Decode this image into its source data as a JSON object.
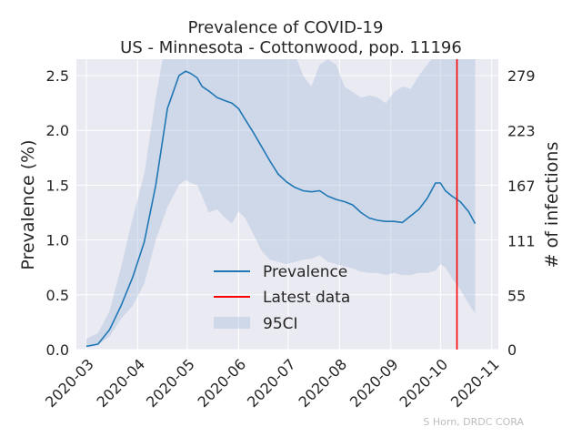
{
  "chart_data": {
    "type": "line",
    "title": "Prevalence of COVID-19",
    "subtitle": "US - Minnesota - Cottonwood, pop. 11196",
    "ylabel": "Prevalence (%)",
    "ylabel_right": "# of infections",
    "ylim": [
      0,
      2.65
    ],
    "y_ticks": [
      0.0,
      0.5,
      1.0,
      1.5,
      2.0,
      2.5
    ],
    "y_tick_labels": [
      "0.0",
      "0.5",
      "1.0",
      "1.5",
      "2.0",
      "2.5"
    ],
    "y2_ticks": [
      0,
      55,
      111,
      167,
      223,
      279
    ],
    "y2_tick_labels": [
      "0",
      "55",
      "111",
      "167",
      "223",
      "279"
    ],
    "x_ticks": [
      "2020-03-01",
      "2020-04-01",
      "2020-05-01",
      "2020-06-01",
      "2020-07-01",
      "2020-08-01",
      "2020-09-01",
      "2020-10-01",
      "2020-11-01"
    ],
    "x_tick_labels": [
      "2020-03",
      "2020-04",
      "2020-05",
      "2020-06",
      "2020-07",
      "2020-08",
      "2020-09",
      "2020-10",
      "2020-11"
    ],
    "xlim": [
      "2020-02-24",
      "2020-11-05"
    ],
    "grid": true,
    "legend_position": "lower-center",
    "colors": {
      "prevalence": "#1f77b4",
      "latest": "#ff0000",
      "ci": "#b0c4de",
      "background": "#eaeaf2"
    },
    "series": [
      {
        "name": "Prevalence",
        "x": [
          "2020-03-01",
          "2020-03-08",
          "2020-03-15",
          "2020-03-22",
          "2020-03-29",
          "2020-04-05",
          "2020-04-12",
          "2020-04-19",
          "2020-04-26",
          "2020-04-30",
          "2020-05-03",
          "2020-05-07",
          "2020-05-10",
          "2020-05-14",
          "2020-05-19",
          "2020-05-24",
          "2020-05-28",
          "2020-06-01",
          "2020-06-05",
          "2020-06-10",
          "2020-06-15",
          "2020-06-20",
          "2020-06-25",
          "2020-06-30",
          "2020-07-05",
          "2020-07-10",
          "2020-07-15",
          "2020-07-20",
          "2020-07-25",
          "2020-07-30",
          "2020-08-04",
          "2020-08-09",
          "2020-08-14",
          "2020-08-19",
          "2020-08-24",
          "2020-08-29",
          "2020-09-03",
          "2020-09-08",
          "2020-09-13",
          "2020-09-18",
          "2020-09-23",
          "2020-09-28",
          "2020-10-01",
          "2020-10-04",
          "2020-10-08",
          "2020-10-13",
          "2020-10-18",
          "2020-10-22"
        ],
        "values": [
          0.03,
          0.05,
          0.18,
          0.4,
          0.66,
          0.98,
          1.5,
          2.2,
          2.5,
          2.54,
          2.52,
          2.48,
          2.4,
          2.36,
          2.3,
          2.27,
          2.25,
          2.2,
          2.1,
          1.98,
          1.85,
          1.72,
          1.6,
          1.53,
          1.48,
          1.45,
          1.44,
          1.45,
          1.4,
          1.37,
          1.35,
          1.32,
          1.25,
          1.2,
          1.18,
          1.17,
          1.17,
          1.16,
          1.22,
          1.28,
          1.38,
          1.52,
          1.52,
          1.45,
          1.4,
          1.35,
          1.26,
          1.15
        ]
      },
      {
        "name": "95CI",
        "x": [
          "2020-03-01",
          "2020-03-08",
          "2020-03-15",
          "2020-03-22",
          "2020-03-29",
          "2020-04-05",
          "2020-04-12",
          "2020-04-19",
          "2020-04-26",
          "2020-04-30",
          "2020-05-03",
          "2020-05-07",
          "2020-05-10",
          "2020-05-14",
          "2020-05-19",
          "2020-05-24",
          "2020-05-28",
          "2020-06-01",
          "2020-06-05",
          "2020-06-10",
          "2020-06-15",
          "2020-06-20",
          "2020-06-25",
          "2020-06-30",
          "2020-07-05",
          "2020-07-10",
          "2020-07-15",
          "2020-07-20",
          "2020-07-25",
          "2020-07-30",
          "2020-08-04",
          "2020-08-09",
          "2020-08-14",
          "2020-08-19",
          "2020-08-24",
          "2020-08-29",
          "2020-09-03",
          "2020-09-08",
          "2020-09-13",
          "2020-09-18",
          "2020-09-23",
          "2020-09-28",
          "2020-10-01",
          "2020-10-04",
          "2020-10-08",
          "2020-10-13",
          "2020-10-18",
          "2020-10-22"
        ],
        "lower": [
          0.02,
          0.04,
          0.12,
          0.28,
          0.4,
          0.6,
          1.0,
          1.3,
          1.5,
          1.55,
          1.52,
          1.5,
          1.4,
          1.25,
          1.28,
          1.2,
          1.15,
          1.26,
          1.2,
          1.05,
          0.9,
          0.82,
          0.8,
          0.78,
          0.8,
          0.82,
          0.83,
          0.86,
          0.8,
          0.78,
          0.76,
          0.74,
          0.71,
          0.7,
          0.7,
          0.68,
          0.7,
          0.68,
          0.68,
          0.7,
          0.7,
          0.72,
          0.78,
          0.75,
          0.65,
          0.55,
          0.42,
          0.33
        ],
        "upper": [
          0.1,
          0.15,
          0.35,
          0.75,
          1.2,
          1.6,
          2.3,
          2.9,
          2.9,
          2.9,
          2.9,
          2.9,
          2.9,
          2.9,
          2.9,
          2.9,
          2.9,
          2.9,
          2.9,
          2.9,
          2.9,
          2.9,
          2.9,
          2.9,
          2.7,
          2.5,
          2.4,
          2.6,
          2.65,
          2.6,
          2.4,
          2.35,
          2.3,
          2.32,
          2.3,
          2.25,
          2.35,
          2.4,
          2.38,
          2.5,
          2.6,
          2.7,
          2.75,
          2.8,
          2.9,
          2.9,
          2.9,
          2.9
        ]
      }
    ],
    "latest_data": {
      "name": "Latest data",
      "x": "2020-10-11"
    },
    "credit": "S Horn, DRDC CORA"
  }
}
